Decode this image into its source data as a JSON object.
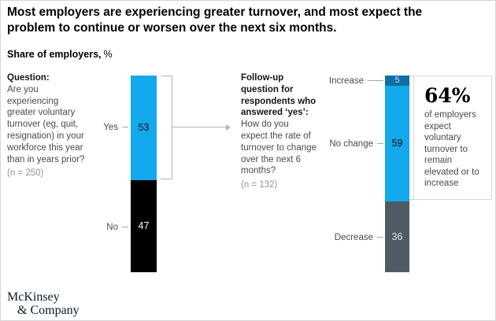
{
  "title": {
    "line1": "Most employers are experiencing greater turnover, and most expect the",
    "line2": "problem to continue or worsen over the next six months."
  },
  "subtitle": {
    "label": "Share of employers,",
    "unit": "%"
  },
  "question_left": {
    "heading": "Question:",
    "body": "Are you experiencing greater voluntary turnover (eg, quit, resignation) in your workforce this year than in years prior?",
    "sample_size": "(n = 250)"
  },
  "question_followup": {
    "heading": "Follow-up question for respondents who answered ‘yes’:",
    "body": "How do you expect the rate of turnover to change over the next 6 months?",
    "sample_size": "(n = 132)"
  },
  "callout": {
    "value": "64%",
    "description": "of employers expect voluntary turnover to remain elevated or to increase"
  },
  "logo": {
    "line1": "McKinsey",
    "line2": "& Company"
  },
  "colors": {
    "light_blue": "#14A9EC",
    "dark_blue": "#0D6FA6",
    "black": "#000000",
    "slate": "#4E5B66",
    "logo_navy": "#051C2C",
    "connector_gray": "#B5B5B5"
  },
  "chart_data": [
    {
      "type": "bar",
      "stacked": true,
      "question": "Are you experiencing greater voluntary turnover (eg, quit, resignation) in your workforce this year than in years prior?",
      "n_label": "(n = 250)",
      "units": "%",
      "categories": [
        "Yes",
        "No"
      ],
      "values": [
        53,
        47
      ],
      "colors": [
        "#14A9EC",
        "#000000"
      ]
    },
    {
      "type": "bar",
      "stacked": true,
      "question": "How do you expect the rate of turnover to change over the next 6 months?",
      "n_label": "(n = 132)",
      "units": "%",
      "categories": [
        "Increase",
        "No change",
        "Decrease"
      ],
      "values": [
        5,
        59,
        36
      ],
      "colors": [
        "#0D6FA6",
        "#14A9EC",
        "#4E5B66"
      ]
    }
  ]
}
